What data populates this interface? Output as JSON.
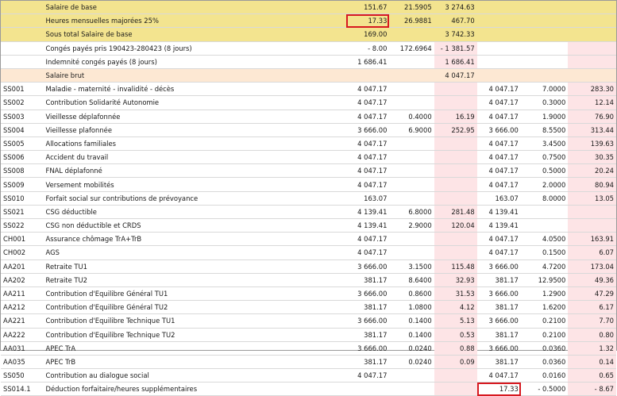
{
  "rows": [
    {
      "code": "",
      "label": "Salaire de base",
      "base": "151.67",
      "rate": "21.5905",
      "amt": "3 274.63",
      "pbase": "",
      "prate": "",
      "pamt": "",
      "style": "yellow"
    },
    {
      "code": "",
      "label": "Heures mensuelles majorées 25%",
      "base": "17.33",
      "rate": "26.9881",
      "amt": "467.70",
      "pbase": "",
      "prate": "",
      "pamt": "",
      "style": "yellow",
      "hl": "base"
    },
    {
      "code": "",
      "label": "Sous total Salaire de base",
      "base": "169.00",
      "rate": "",
      "amt": "3 742.33",
      "pbase": "",
      "prate": "",
      "pamt": "",
      "style": "yellow"
    },
    {
      "code": "",
      "label": "Congés payés pris 190423-280423 (8 jours)",
      "base": "- 8.00",
      "rate": "172.6964",
      "amt": "- 1 381.57",
      "pbase": "",
      "prate": "",
      "pamt": "",
      "style": ""
    },
    {
      "code": "",
      "label": "Indemnité congés payés (8 jours)",
      "base": "1 686.41",
      "rate": "",
      "amt": "1 686.41",
      "pbase": "",
      "prate": "",
      "pamt": "",
      "style": ""
    },
    {
      "code": "",
      "label": "Salaire brut",
      "base": "",
      "rate": "",
      "amt": "4 047.17",
      "pbase": "",
      "prate": "",
      "pamt": "",
      "style": "peach"
    },
    {
      "code": "SS001",
      "label": "Maladie - maternité - invalidité - décès",
      "base": "4 047.17",
      "rate": "",
      "amt": "",
      "pbase": "4 047.17",
      "prate": "7.0000",
      "pamt": "283.30",
      "style": ""
    },
    {
      "code": "SS002",
      "label": "Contribution Solidarité Autonomie",
      "base": "4 047.17",
      "rate": "",
      "amt": "",
      "pbase": "4 047.17",
      "prate": "0.3000",
      "pamt": "12.14",
      "style": ""
    },
    {
      "code": "SS003",
      "label": "Vieillesse déplafonnée",
      "base": "4 047.17",
      "rate": "0.4000",
      "amt": "16.19",
      "pbase": "4 047.17",
      "prate": "1.9000",
      "pamt": "76.90",
      "style": ""
    },
    {
      "code": "SS004",
      "label": "Vieillesse plafonnée",
      "base": "3 666.00",
      "rate": "6.9000",
      "amt": "252.95",
      "pbase": "3 666.00",
      "prate": "8.5500",
      "pamt": "313.44",
      "style": ""
    },
    {
      "code": "SS005",
      "label": "Allocations familiales",
      "base": "4 047.17",
      "rate": "",
      "amt": "",
      "pbase": "4 047.17",
      "prate": "3.4500",
      "pamt": "139.63",
      "style": ""
    },
    {
      "code": "SS006",
      "label": "Accident du travail",
      "base": "4 047.17",
      "rate": "",
      "amt": "",
      "pbase": "4 047.17",
      "prate": "0.7500",
      "pamt": "30.35",
      "style": ""
    },
    {
      "code": "SS008",
      "label": "FNAL déplafonné",
      "base": "4 047.17",
      "rate": "",
      "amt": "",
      "pbase": "4 047.17",
      "prate": "0.5000",
      "pamt": "20.24",
      "style": ""
    },
    {
      "code": "SS009",
      "label": "Versement mobilités",
      "base": "4 047.17",
      "rate": "",
      "amt": "",
      "pbase": "4 047.17",
      "prate": "2.0000",
      "pamt": "80.94",
      "style": ""
    },
    {
      "code": "SS010",
      "label": "Forfait social sur contributions de prévoyance",
      "base": "163.07",
      "rate": "",
      "amt": "",
      "pbase": "163.07",
      "prate": "8.0000",
      "pamt": "13.05",
      "style": ""
    },
    {
      "code": "SS021",
      "label": "CSG déductible",
      "base": "4 139.41",
      "rate": "6.8000",
      "amt": "281.48",
      "pbase": "4 139.41",
      "prate": "",
      "pamt": "",
      "style": ""
    },
    {
      "code": "SS022",
      "label": "CSG non déductible et CRDS",
      "base": "4 139.41",
      "rate": "2.9000",
      "amt": "120.04",
      "pbase": "4 139.41",
      "prate": "",
      "pamt": "",
      "style": ""
    },
    {
      "code": "CH001",
      "label": "Assurance chômage TrA+TrB",
      "base": "4 047.17",
      "rate": "",
      "amt": "",
      "pbase": "4 047.17",
      "prate": "4.0500",
      "pamt": "163.91",
      "style": ""
    },
    {
      "code": "CH002",
      "label": "AGS",
      "base": "4 047.17",
      "rate": "",
      "amt": "",
      "pbase": "4 047.17",
      "prate": "0.1500",
      "pamt": "6.07",
      "style": ""
    },
    {
      "code": "AA201",
      "label": "Retraite TU1",
      "base": "3 666.00",
      "rate": "3.1500",
      "amt": "115.48",
      "pbase": "3 666.00",
      "prate": "4.7200",
      "pamt": "173.04",
      "style": ""
    },
    {
      "code": "AA202",
      "label": "Retraite TU2",
      "base": "381.17",
      "rate": "8.6400",
      "amt": "32.93",
      "pbase": "381.17",
      "prate": "12.9500",
      "pamt": "49.36",
      "style": ""
    },
    {
      "code": "AA211",
      "label": "Contribution d'Equilibre Général TU1",
      "base": "3 666.00",
      "rate": "0.8600",
      "amt": "31.53",
      "pbase": "3 666.00",
      "prate": "1.2900",
      "pamt": "47.29",
      "style": ""
    },
    {
      "code": "AA212",
      "label": "Contribution d'Equilibre Général TU2",
      "base": "381.17",
      "rate": "1.0800",
      "amt": "4.12",
      "pbase": "381.17",
      "prate": "1.6200",
      "pamt": "6.17",
      "style": ""
    },
    {
      "code": "AA221",
      "label": "Contribution d'Equilibre Technique TU1",
      "base": "3 666.00",
      "rate": "0.1400",
      "amt": "5.13",
      "pbase": "3 666.00",
      "prate": "0.2100",
      "pamt": "7.70",
      "style": ""
    },
    {
      "code": "AA222",
      "label": "Contribution d'Equilibre Technique TU2",
      "base": "381.17",
      "rate": "0.1400",
      "amt": "0.53",
      "pbase": "381.17",
      "prate": "0.2100",
      "pamt": "0.80",
      "style": ""
    },
    {
      "code": "AA031",
      "label": "APEC TrA",
      "base": "3 666.00",
      "rate": "0.0240",
      "amt": "0.88",
      "pbase": "3 666.00",
      "prate": "0.0360",
      "pamt": "1.32",
      "style": ""
    },
    {
      "code": "AA035",
      "label": "APEC TrB",
      "base": "381.17",
      "rate": "0.0240",
      "amt": "0.09",
      "pbase": "381.17",
      "prate": "0.0360",
      "pamt": "0.14",
      "style": ""
    },
    {
      "code": "SS050",
      "label": "Contribution au dialogue social",
      "base": "4 047.17",
      "rate": "",
      "amt": "",
      "pbase": "4 047.17",
      "prate": "0.0160",
      "pamt": "0.65",
      "style": ""
    },
    {
      "code": "SS014.1",
      "label": "Déduction forfaitaire/heures supplémentaires",
      "base": "",
      "rate": "",
      "amt": "",
      "pbase": "17.33",
      "prate": "- 0.5000",
      "pamt": "- 8.67",
      "style": "",
      "hl": "pbase"
    }
  ]
}
